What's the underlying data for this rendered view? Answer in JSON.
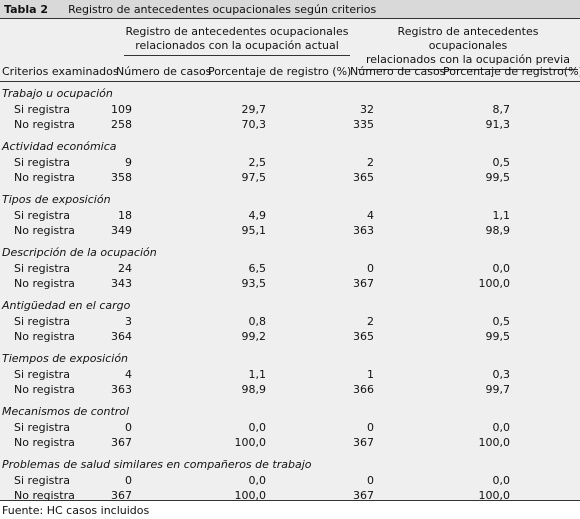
{
  "caption": {
    "label": "Tabla 2",
    "title": "Registro de antecedentes ocupacionales según criterios"
  },
  "group_headers": {
    "current_line1": "Registro de antecedentes ocupacionales",
    "current_line2": "relacionados con la ocupación actual",
    "previous_line1": "Registro de antecedentes ocupacionales",
    "previous_line2": "relacionados con la ocupación previa"
  },
  "columns": {
    "criteria": "Criterios examinados",
    "cases_current": "Número de casos",
    "pct_current": "Porcentaje de registro (%)",
    "cases_previous": "Número de casos",
    "pct_previous": "Porcentaje de registro(%)"
  },
  "sections": [
    {
      "title": "Trabajo u ocupación",
      "rows": [
        {
          "label": "Si registra",
          "n1": "109",
          "p1": "29,7",
          "n2": "32",
          "p2": "8,7"
        },
        {
          "label": "No registra",
          "n1": "258",
          "p1": "70,3",
          "n2": "335",
          "p2": "91,3"
        }
      ]
    },
    {
      "title": "Actividad económica",
      "rows": [
        {
          "label": "Si registra",
          "n1": "9",
          "p1": "2,5",
          "n2": "2",
          "p2": "0,5"
        },
        {
          "label": "No registra",
          "n1": "358",
          "p1": "97,5",
          "n2": "365",
          "p2": "99,5"
        }
      ]
    },
    {
      "title": "Tipos de exposición",
      "rows": [
        {
          "label": "Si registra",
          "n1": "18",
          "p1": "4,9",
          "n2": "4",
          "p2": "1,1"
        },
        {
          "label": "No registra",
          "n1": "349",
          "p1": "95,1",
          "n2": "363",
          "p2": "98,9"
        }
      ]
    },
    {
      "title": "Descripción de la ocupación",
      "rows": [
        {
          "label": "Si registra",
          "n1": "24",
          "p1": "6,5",
          "n2": "0",
          "p2": "0,0"
        },
        {
          "label": "No registra",
          "n1": "343",
          "p1": "93,5",
          "n2": "367",
          "p2": "100,0"
        }
      ]
    },
    {
      "title": "Antigüedad en el cargo",
      "rows": [
        {
          "label": "Si registra",
          "n1": "3",
          "p1": "0,8",
          "n2": "2",
          "p2": "0,5"
        },
        {
          "label": "No registra",
          "n1": "364",
          "p1": "99,2",
          "n2": "365",
          "p2": "99,5"
        }
      ]
    },
    {
      "title": "Tiempos de exposición",
      "rows": [
        {
          "label": "Si registra",
          "n1": "4",
          "p1": "1,1",
          "n2": "1",
          "p2": "0,3"
        },
        {
          "label": "No registra",
          "n1": "363",
          "p1": "98,9",
          "n2": "366",
          "p2": "99,7"
        }
      ]
    },
    {
      "title": "Mecanismos de control",
      "rows": [
        {
          "label": "Si registra",
          "n1": "0",
          "p1": "0,0",
          "n2": "0",
          "p2": "0,0"
        },
        {
          "label": "No registra",
          "n1": "367",
          "p1": "100,0",
          "n2": "367",
          "p2": "100,0"
        }
      ]
    },
    {
      "title": "Problemas de salud similares en compañeros de trabajo",
      "rows": [
        {
          "label": "Si registra",
          "n1": "0",
          "p1": "0,0",
          "n2": "0",
          "p2": "0,0"
        },
        {
          "label": "No registra",
          "n1": "367",
          "p1": "100,0",
          "n2": "367",
          "p2": "100,0"
        }
      ]
    }
  ],
  "footer": "Fuente: HC casos incluidos"
}
